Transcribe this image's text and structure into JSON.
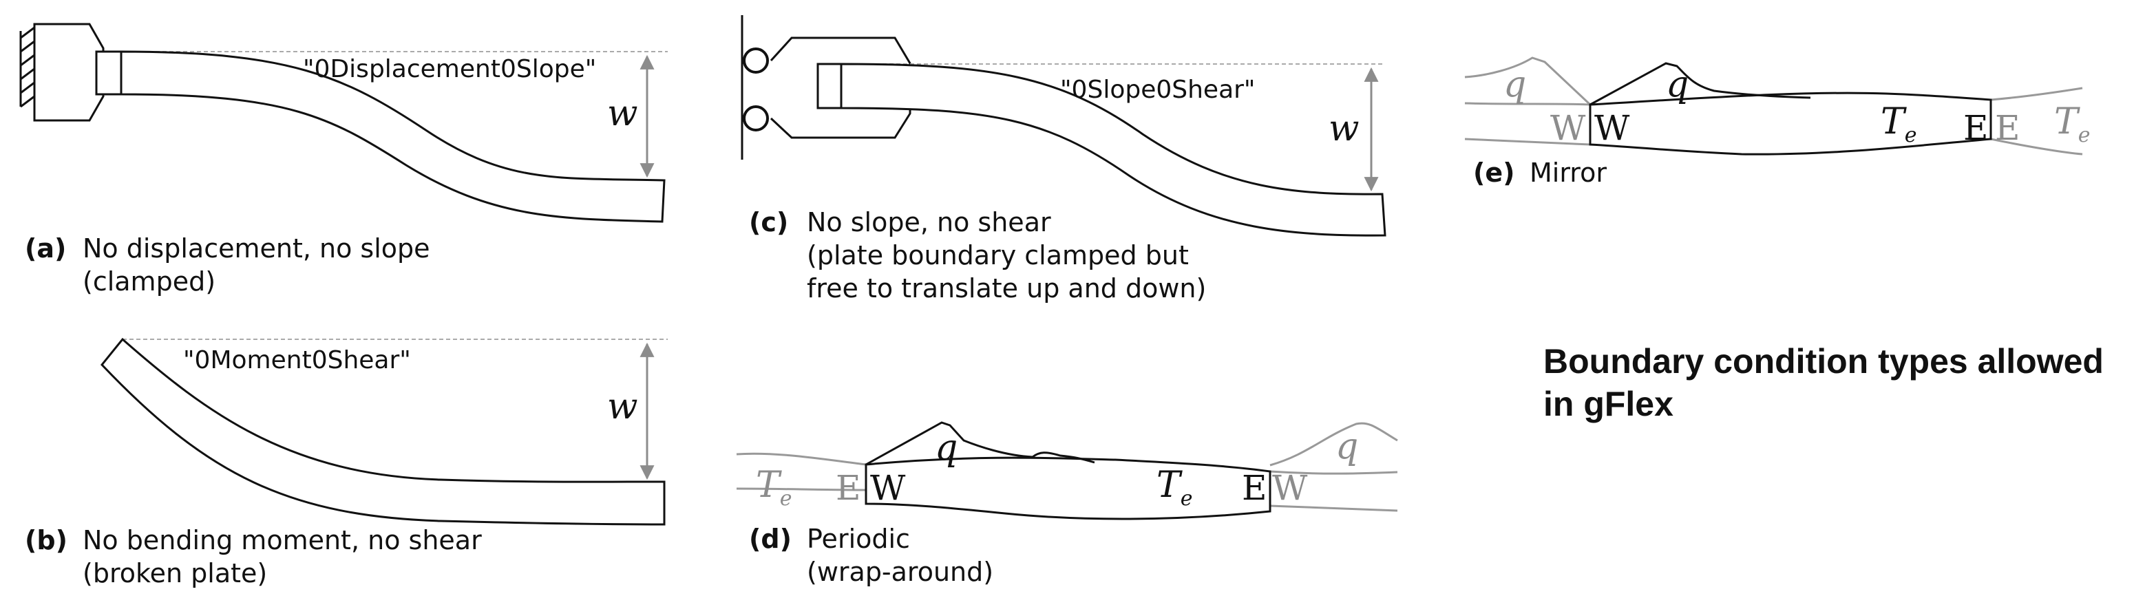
{
  "panels": {
    "a": {
      "letter": "(a)",
      "line1": "No displacement, no slope",
      "line2": "(clamped)",
      "code": "\"0Displacement0Slope\"",
      "deflection": "w"
    },
    "b": {
      "letter": "(b)",
      "line1": "No bending moment, no shear",
      "line2": "(broken plate)",
      "code": "\"0Moment0Shear\"",
      "deflection": "w"
    },
    "c": {
      "letter": "(c)",
      "line1": "No slope, no shear",
      "line2": "(plate boundary clamped but",
      "line3": "free to translate up and down)",
      "code": "\"0Slope0Shear\"",
      "deflection": "w"
    },
    "d": {
      "letter": "(d)",
      "line1": "Periodic",
      "line2": "(wrap-around)",
      "load": "q",
      "te": "T",
      "te_sub": "e",
      "west": "W",
      "east": "E"
    },
    "e": {
      "letter": "(e)",
      "line1": "Mirror",
      "load": "q",
      "te": "T",
      "te_sub": "e",
      "west": "W",
      "east": "E"
    }
  },
  "title": {
    "line1": "Boundary condition types allowed",
    "line2": "in gFlex"
  },
  "colors": {
    "ink": "#111111",
    "ghost": "#8c8c8c",
    "guide": "#aaaaaa",
    "background": "#ffffff"
  }
}
